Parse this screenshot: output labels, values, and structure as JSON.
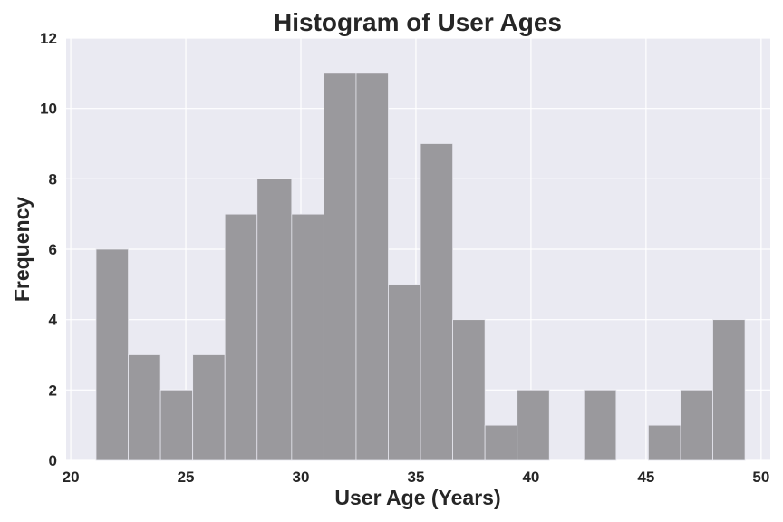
{
  "chart_data": {
    "type": "bar",
    "title": "Histogram of User Ages",
    "xlabel": "User Age (Years)",
    "ylabel": "Frequency",
    "xlim": [
      19.8,
      50.4
    ],
    "ylim": [
      0,
      12
    ],
    "x_ticks": [
      20,
      25,
      30,
      35,
      40,
      45,
      50
    ],
    "y_ticks": [
      0,
      2,
      4,
      6,
      8,
      10,
      12
    ],
    "grid": true,
    "colors": {
      "bar": "#9a999d",
      "plot_background": "#eaeaf2",
      "grid": "#ffffff",
      "text": "#262626"
    },
    "bins": [
      {
        "start": 21.1,
        "end": 22.5,
        "count": 6
      },
      {
        "start": 22.5,
        "end": 23.9,
        "count": 3
      },
      {
        "start": 23.9,
        "end": 25.3,
        "count": 2
      },
      {
        "start": 25.3,
        "end": 26.7,
        "count": 3
      },
      {
        "start": 26.7,
        "end": 28.1,
        "count": 7
      },
      {
        "start": 28.1,
        "end": 29.6,
        "count": 8
      },
      {
        "start": 29.6,
        "end": 31.0,
        "count": 7
      },
      {
        "start": 31.0,
        "end": 32.4,
        "count": 11
      },
      {
        "start": 32.4,
        "end": 33.8,
        "count": 11
      },
      {
        "start": 33.8,
        "end": 35.2,
        "count": 5
      },
      {
        "start": 35.2,
        "end": 36.6,
        "count": 9
      },
      {
        "start": 36.6,
        "end": 38.0,
        "count": 4
      },
      {
        "start": 38.0,
        "end": 39.4,
        "count": 1
      },
      {
        "start": 39.4,
        "end": 40.8,
        "count": 2
      },
      {
        "start": 40.8,
        "end": 42.3,
        "count": 0
      },
      {
        "start": 42.3,
        "end": 43.7,
        "count": 2
      },
      {
        "start": 43.7,
        "end": 45.1,
        "count": 0
      },
      {
        "start": 45.1,
        "end": 46.5,
        "count": 1
      },
      {
        "start": 46.5,
        "end": 47.9,
        "count": 2
      },
      {
        "start": 47.9,
        "end": 49.3,
        "count": 4
      }
    ]
  }
}
